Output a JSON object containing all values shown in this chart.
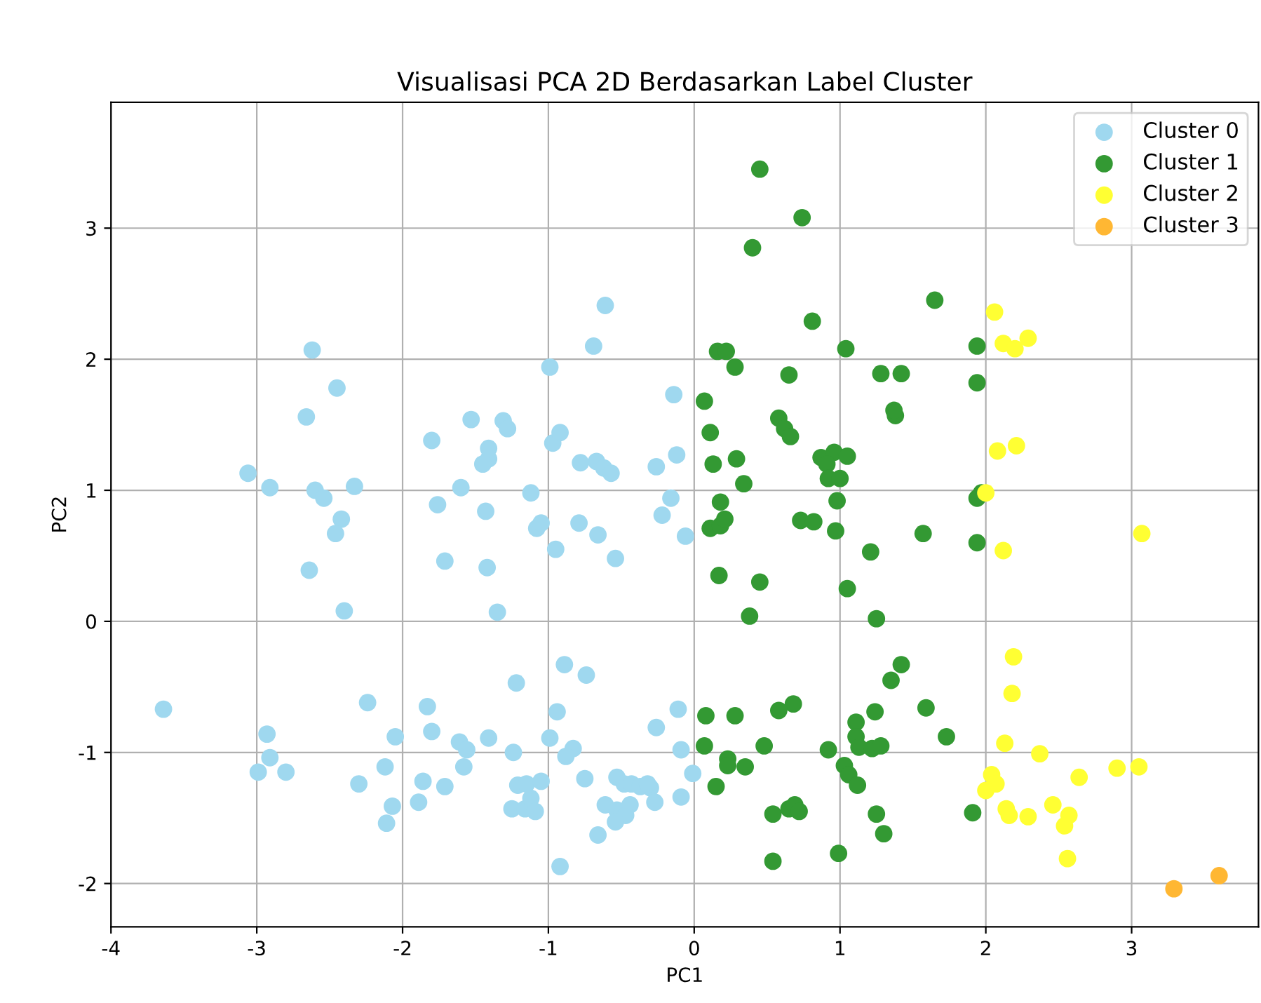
{
  "chart_data": {
    "type": "scatter",
    "title": "Visualisasi PCA 2D Berdasarkan Label Cluster",
    "xlabel": "PC1",
    "ylabel": "PC2",
    "xlim": [
      -4.0,
      3.87
    ],
    "ylim": [
      -2.33,
      3.96
    ],
    "xticks": [
      -4,
      -3,
      -2,
      -1,
      0,
      1,
      2,
      3
    ],
    "yticks": [
      -2,
      -1,
      0,
      1,
      2,
      3
    ],
    "grid": true,
    "legend": "top right",
    "marker": "circle",
    "series": [
      {
        "name": "Cluster 0",
        "color": "#9fd8ef",
        "x": [
          -3.64,
          -3.06,
          -2.91,
          -2.62,
          -2.66,
          -2.6,
          -2.54,
          -2.45,
          -2.42,
          -2.46,
          -2.64,
          -2.4,
          -2.93,
          -2.91,
          -2.99,
          -2.8,
          -2.33,
          -2.24,
          -2.3,
          -2.05,
          -2.12,
          -2.07,
          -2.11,
          -1.8,
          -1.76,
          -1.71,
          -1.83,
          -1.8,
          -1.86,
          -1.89,
          -1.71,
          -1.61,
          -1.56,
          -1.58,
          -1.6,
          -1.53,
          -1.41,
          -1.41,
          -1.45,
          -1.43,
          -1.42,
          -1.35,
          -1.31,
          -1.41,
          -1.28,
          -1.22,
          -1.24,
          -1.21,
          -1.25,
          -1.16,
          -1.12,
          -1.09,
          -1.15,
          -1.05,
          -1.12,
          -1.08,
          -1.05,
          -0.99,
          -0.97,
          -0.92,
          -0.95,
          -0.99,
          -0.94,
          -0.92,
          -0.89,
          -0.83,
          -0.88,
          -0.78,
          -0.79,
          -0.74,
          -0.75,
          -0.67,
          -0.69,
          -0.66,
          -0.62,
          -0.57,
          -0.61,
          -0.66,
          -0.61,
          -0.54,
          -0.53,
          -0.53,
          -0.48,
          -0.44,
          -0.47,
          -0.54,
          -0.43,
          -0.37,
          -0.3,
          -0.32,
          -0.27,
          -0.26,
          -0.22,
          -0.26,
          -0.16,
          -0.14,
          -0.12,
          -0.11,
          -0.09,
          -0.09,
          -0.06,
          -0.01
        ],
        "values": [
          -0.67,
          1.13,
          1.02,
          2.07,
          1.56,
          1.0,
          0.94,
          1.78,
          0.78,
          0.67,
          0.39,
          0.08,
          -0.86,
          -1.04,
          -1.15,
          -1.15,
          1.03,
          -0.62,
          -1.24,
          -0.88,
          -1.11,
          -1.41,
          -1.54,
          1.38,
          0.89,
          0.46,
          -0.65,
          -0.84,
          -1.22,
          -1.38,
          -1.26,
          -0.92,
          -0.98,
          -1.11,
          1.02,
          1.54,
          -0.89,
          1.24,
          1.2,
          0.84,
          0.41,
          0.07,
          1.53,
          1.32,
          1.47,
          -0.47,
          -1.0,
          -1.25,
          -1.43,
          -1.43,
          -1.35,
          -1.45,
          -1.24,
          -1.22,
          0.98,
          0.71,
          0.75,
          1.94,
          1.36,
          1.44,
          0.55,
          -0.89,
          -0.69,
          -1.87,
          -0.33,
          -0.97,
          -1.03,
          1.21,
          0.75,
          -0.41,
          -1.2,
          1.22,
          2.1,
          0.66,
          1.17,
          1.13,
          2.41,
          -1.63,
          -1.4,
          0.48,
          -1.19,
          -1.44,
          -1.24,
          -1.4,
          -1.48,
          -1.53,
          -1.24,
          -1.26,
          -1.27,
          -1.24,
          -1.38,
          1.18,
          0.81,
          -0.81,
          0.94,
          1.73,
          1.27,
          -0.67,
          -0.98,
          -1.34,
          0.65,
          -1.16
        ]
      },
      {
        "name": "Cluster 1",
        "color": "#339933",
        "x": [
          0.45,
          0.74,
          0.4,
          1.65,
          0.81,
          0.16,
          0.22,
          0.28,
          1.04,
          0.65,
          0.07,
          1.28,
          1.42,
          1.94,
          1.94,
          0.58,
          1.38,
          1.37,
          0.62,
          0.66,
          0.11,
          0.29,
          0.87,
          0.96,
          1.05,
          0.13,
          0.91,
          0.34,
          0.92,
          1.0,
          0.18,
          0.98,
          0.11,
          0.18,
          0.21,
          0.73,
          0.82,
          0.97,
          1.57,
          1.94,
          1.97,
          1.94,
          1.21,
          0.17,
          0.45,
          1.05,
          0.38,
          1.25,
          1.42,
          1.35,
          0.08,
          0.28,
          0.68,
          0.58,
          1.59,
          0.07,
          0.23,
          1.73,
          1.11,
          1.11,
          1.24,
          0.48,
          1.13,
          1.22,
          1.28,
          0.92,
          0.15,
          0.23,
          0.35,
          0.54,
          0.65,
          0.69,
          0.72,
          1.03,
          1.06,
          1.12,
          1.25,
          1.3,
          0.99,
          0.54,
          1.91
        ],
        "values": [
          3.45,
          3.08,
          2.85,
          2.45,
          2.29,
          2.06,
          2.06,
          1.94,
          2.08,
          1.88,
          1.68,
          1.89,
          1.89,
          2.1,
          1.82,
          1.55,
          1.57,
          1.61,
          1.47,
          1.41,
          1.44,
          1.24,
          1.25,
          1.29,
          1.26,
          1.2,
          1.2,
          1.05,
          1.09,
          1.09,
          0.91,
          0.92,
          0.71,
          0.73,
          0.78,
          0.77,
          0.76,
          0.69,
          0.67,
          0.94,
          0.98,
          0.6,
          0.53,
          0.35,
          0.3,
          0.25,
          0.04,
          0.02,
          -0.33,
          -0.45,
          -0.72,
          -0.72,
          -0.63,
          -0.68,
          -0.66,
          -0.95,
          -1.05,
          -0.88,
          -0.77,
          -0.88,
          -0.69,
          -0.95,
          -0.96,
          -0.97,
          -0.95,
          -0.98,
          -1.26,
          -1.1,
          -1.11,
          -1.47,
          -1.43,
          -1.4,
          -1.45,
          -1.1,
          -1.17,
          -1.25,
          -1.47,
          -1.62,
          -1.77,
          -1.83,
          -1.46
        ]
      },
      {
        "name": "Cluster 2",
        "color": "#ffff33",
        "x": [
          2.06,
          2.12,
          2.2,
          2.29,
          2.21,
          2.08,
          2.0,
          2.12,
          3.07,
          2.19,
          2.18,
          2.13,
          2.37,
          2.04,
          2.07,
          2.0,
          2.14,
          2.16,
          2.29,
          2.46,
          2.64,
          2.9,
          3.05,
          2.57,
          2.54,
          2.56
        ],
        "values": [
          2.36,
          2.12,
          2.08,
          2.16,
          1.34,
          1.3,
          0.98,
          0.54,
          0.67,
          -0.27,
          -0.55,
          -0.93,
          -1.01,
          -1.17,
          -1.24,
          -1.29,
          -1.43,
          -1.48,
          -1.49,
          -1.4,
          -1.19,
          -1.12,
          -1.11,
          -1.48,
          -1.56,
          -1.81
        ]
      },
      {
        "name": "Cluster 3",
        "color": "#ffb733",
        "x": [
          3.29,
          3.6
        ],
        "values": [
          -2.04,
          -1.94
        ]
      }
    ]
  }
}
